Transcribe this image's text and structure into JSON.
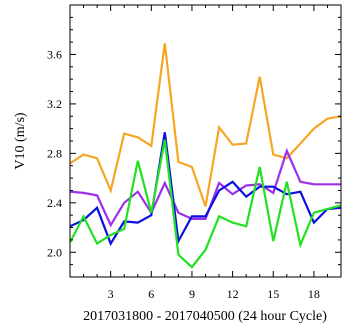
{
  "chart_data": {
    "type": "line",
    "title": "",
    "xlabel": "2017031800 - 2017040500 (24 hour Cycle)",
    "ylabel": "V10 (m/s)",
    "xlim": [
      0,
      20
    ],
    "ylim": [
      1.8,
      4.0
    ],
    "x_ticks": [
      3,
      6,
      9,
      12,
      15,
      18
    ],
    "x_minor_ticks": [
      1,
      2,
      4,
      5,
      7,
      8,
      10,
      11,
      13,
      14,
      16,
      17,
      19
    ],
    "y_ticks": [
      2.0,
      2.4,
      2.8,
      3.2,
      3.6
    ],
    "y_tick_labels": [
      "2.0",
      "2.4",
      "2.8",
      "3.2",
      "3.6"
    ],
    "grid": false,
    "legend": "none",
    "x": [
      0,
      1,
      2,
      3,
      4,
      5,
      6,
      7,
      8,
      9,
      10,
      11,
      12,
      13,
      14,
      15,
      16,
      17,
      18,
      19,
      20
    ],
    "series": [
      {
        "color": "#f5a623",
        "values": [
          2.72,
          2.79,
          2.76,
          2.5,
          2.96,
          2.93,
          2.86,
          3.69,
          2.73,
          2.69,
          2.37,
          3.01,
          2.87,
          2.88,
          3.42,
          2.79,
          2.76,
          2.88,
          3.0,
          3.08,
          3.1
        ]
      },
      {
        "color": "#9b30e8",
        "values": [
          2.49,
          2.48,
          2.46,
          2.22,
          2.4,
          2.49,
          2.32,
          2.56,
          2.32,
          2.27,
          2.27,
          2.56,
          2.47,
          2.54,
          2.55,
          2.48,
          2.82,
          2.57,
          2.55,
          2.55,
          2.55
        ]
      },
      {
        "color": "#0a10e0",
        "values": [
          2.21,
          2.26,
          2.36,
          2.07,
          2.25,
          2.24,
          2.3,
          2.97,
          2.09,
          2.29,
          2.29,
          2.5,
          2.57,
          2.45,
          2.53,
          2.53,
          2.47,
          2.49,
          2.24,
          2.35,
          2.36
        ]
      },
      {
        "color": "#22e022",
        "values": [
          2.08,
          2.29,
          2.07,
          2.14,
          2.19,
          2.74,
          2.32,
          2.91,
          1.98,
          1.88,
          2.02,
          2.29,
          2.24,
          2.21,
          2.69,
          2.09,
          2.57,
          2.06,
          2.32,
          2.35,
          2.38
        ]
      }
    ]
  }
}
